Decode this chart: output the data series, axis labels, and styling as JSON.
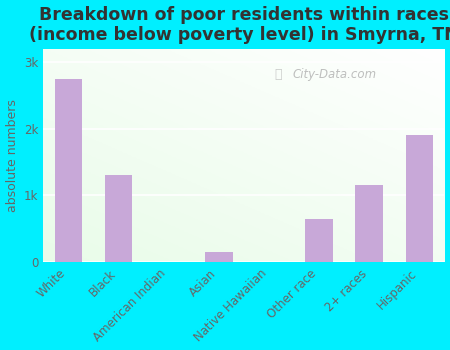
{
  "categories": [
    "White",
    "Black",
    "American Indian",
    "Asian",
    "Native Hawaiian",
    "Other race",
    "2+ races",
    "Hispanic"
  ],
  "values": [
    2750,
    1300,
    0,
    150,
    0,
    650,
    1150,
    1900
  ],
  "bar_color": "#c8a8d8",
  "title": "Breakdown of poor residents within races\n(income below poverty level) in Smyrna, TN",
  "ylabel": "absolute numbers",
  "ylim": [
    0,
    3200
  ],
  "yticks": [
    0,
    1000,
    2000,
    3000
  ],
  "ytick_labels": [
    "0",
    "1k",
    "2k",
    "3k"
  ],
  "background_outer": "#00efff",
  "watermark": "City-Data.com",
  "title_fontsize": 12.5,
  "ylabel_fontsize": 9,
  "tick_fontsize": 8.5,
  "title_color": "#333333",
  "tick_color": "#666666"
}
